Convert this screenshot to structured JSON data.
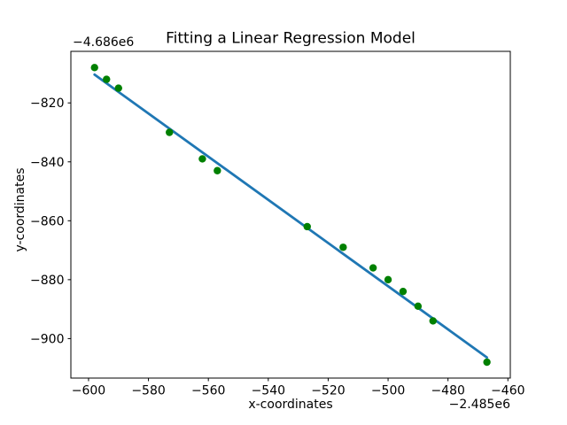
{
  "figure": {
    "background": "#ffffff",
    "axes_edge_color": "#000000",
    "text_color": "#000000"
  },
  "chart_data": {
    "type": "scatter",
    "title": "Fitting a Linear Regression Model",
    "xlabel": "x-coordinates",
    "ylabel": "y-coordinates",
    "x_offset_label": "−2.485e6",
    "y_offset_label": "−4.686e6",
    "xlim": [
      -605.9,
      -459.2
    ],
    "ylim": [
      -913.4,
      -802.5
    ],
    "xticks": [
      -600,
      -580,
      -560,
      -540,
      -520,
      -500,
      -480,
      -460
    ],
    "yticks": [
      -900,
      -880,
      -860,
      -840,
      -820
    ],
    "grid": false,
    "legend": false,
    "series": [
      {
        "name": "fitted-regression-line",
        "type": "line",
        "color": "#1f77b4",
        "line_width": 2.8,
        "x": [
          -598,
          -467
        ],
        "y": [
          -810.4,
          -906.4
        ]
      },
      {
        "name": "data-points",
        "type": "scatter",
        "color": "#008000",
        "marker_radius": 4.2,
        "x": [
          -598,
          -594,
          -590,
          -573,
          -562,
          -557,
          -527,
          -515,
          -505,
          -500,
          -495,
          -490,
          -485,
          -467
        ],
        "y": [
          -808,
          -812,
          -815,
          -830,
          -839,
          -843,
          -862,
          -869,
          -876,
          -880,
          -884,
          -889,
          -894,
          -908
        ]
      }
    ]
  }
}
